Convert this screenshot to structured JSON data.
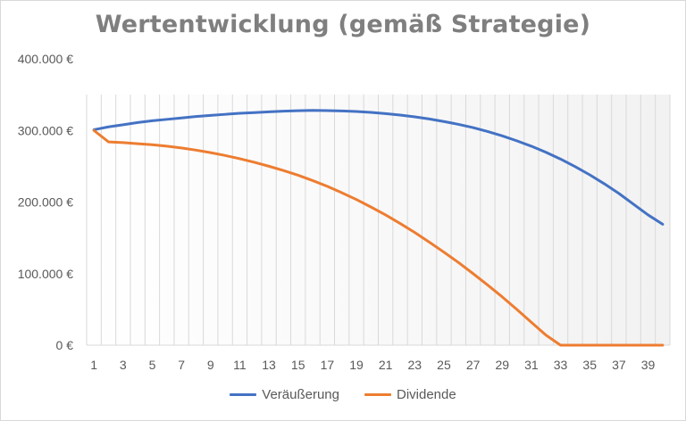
{
  "chart_data": {
    "type": "line",
    "title": "Wertentwicklung (gemäß Strategie)",
    "xlabel": "",
    "ylabel": "",
    "x": [
      1,
      2,
      3,
      4,
      5,
      6,
      7,
      8,
      9,
      10,
      11,
      12,
      13,
      14,
      15,
      16,
      17,
      18,
      19,
      20,
      21,
      22,
      23,
      24,
      25,
      26,
      27,
      28,
      29,
      30,
      31,
      32,
      33,
      34,
      35,
      36,
      37,
      38,
      39,
      40
    ],
    "x_tick_labels": [
      "1",
      "3",
      "5",
      "7",
      "9",
      "11",
      "13",
      "15",
      "17",
      "19",
      "21",
      "23",
      "25",
      "27",
      "29",
      "31",
      "33",
      "35",
      "37",
      "39"
    ],
    "y_tick_labels": [
      "0 €",
      "100.000 €",
      "200.000 €",
      "300.000 €",
      "400.000 €"
    ],
    "ylim": [
      0,
      400000
    ],
    "grid": "vertical",
    "legend_position": "bottom",
    "series": [
      {
        "name": "Veräußerung",
        "color": "#4472c4",
        "values": [
          301000,
          305000,
          308000,
          311000,
          313500,
          315500,
          317500,
          319500,
          321000,
          322500,
          324000,
          325000,
          326000,
          327000,
          327500,
          328000,
          327700,
          327200,
          326500,
          325200,
          323500,
          321500,
          319000,
          316000,
          312500,
          308500,
          304000,
          298500,
          292500,
          285500,
          278000,
          269500,
          260000,
          249500,
          238000,
          225500,
          212000,
          197000,
          182000,
          169000
        ]
      },
      {
        "name": "Dividende",
        "color": "#ed7d31",
        "values": [
          300000,
          284000,
          283000,
          281500,
          280000,
          278000,
          275500,
          272500,
          269000,
          265000,
          260500,
          255500,
          250000,
          244000,
          237500,
          230000,
          222000,
          213000,
          203500,
          193000,
          182000,
          170000,
          157500,
          144000,
          130000,
          115500,
          100000,
          84000,
          67500,
          50000,
          32000,
          14000,
          0,
          0,
          0,
          0,
          0,
          0,
          0,
          0
        ]
      }
    ]
  }
}
